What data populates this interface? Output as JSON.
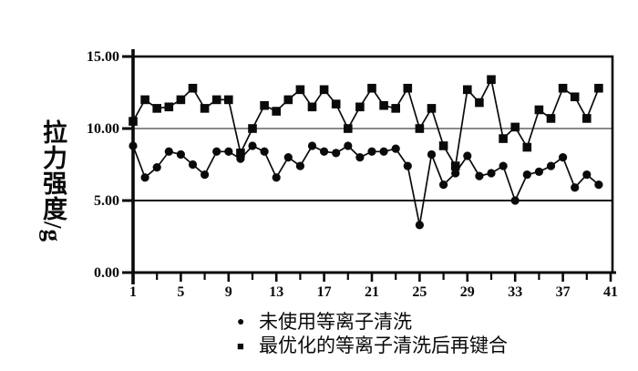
{
  "chart_data": {
    "type": "line",
    "title": "",
    "xlabel": "",
    "ylabel": "拉力强度/g",
    "ylim": [
      0,
      15
    ],
    "xlim": [
      1,
      41
    ],
    "grid": "horizontal",
    "gridlines_y": [
      5,
      10
    ],
    "legend_position": "bottom",
    "y_axis_ticks": [
      {
        "value": 0,
        "label": "0.00"
      },
      {
        "value": 5,
        "label": "5.00"
      },
      {
        "value": 10,
        "label": "10.00"
      },
      {
        "value": 15,
        "label": "15.00"
      }
    ],
    "x_tick_labels": [
      1,
      5,
      9,
      13,
      17,
      21,
      25,
      29,
      33,
      37,
      41
    ],
    "x_minor_tick_step": 2,
    "x": [
      1,
      2,
      3,
      4,
      5,
      6,
      7,
      8,
      9,
      10,
      11,
      12,
      13,
      14,
      15,
      16,
      17,
      18,
      19,
      20,
      21,
      22,
      23,
      24,
      25,
      26,
      27,
      28,
      29,
      30,
      31,
      32,
      33,
      34,
      35,
      36,
      37,
      38,
      39,
      40
    ],
    "series": [
      {
        "name": "未使用等离子清洗",
        "marker": "circle",
        "legend_glyph": "●",
        "values": [
          8.8,
          6.6,
          7.3,
          8.4,
          8.2,
          7.5,
          6.8,
          8.4,
          8.4,
          7.9,
          8.8,
          8.4,
          6.6,
          8.0,
          7.4,
          8.8,
          8.4,
          8.3,
          8.8,
          8.0,
          8.4,
          8.4,
          8.6,
          7.4,
          3.3,
          8.2,
          6.1,
          6.9,
          8.1,
          6.7,
          6.9,
          7.4,
          5.0,
          6.8,
          7.0,
          7.4,
          8.0,
          5.9,
          6.8,
          6.1
        ]
      },
      {
        "name": "最优化的等离子清洗后再键合",
        "marker": "square",
        "legend_glyph": "■",
        "values": [
          10.5,
          12.0,
          11.4,
          11.5,
          12.0,
          12.8,
          11.4,
          12.0,
          12.0,
          8.3,
          10.0,
          11.6,
          11.2,
          12.0,
          12.7,
          11.5,
          12.7,
          11.7,
          10.0,
          11.5,
          12.8,
          11.6,
          11.4,
          12.8,
          10.0,
          11.4,
          8.8,
          7.4,
          12.7,
          11.8,
          13.4,
          9.3,
          10.1,
          8.7,
          11.3,
          10.7,
          12.8,
          12.2,
          10.7,
          12.8
        ]
      }
    ]
  },
  "colors": {
    "foreground": "#0a0a0a",
    "grid_gray": "#8a8a8a",
    "background": "#ffffff"
  }
}
